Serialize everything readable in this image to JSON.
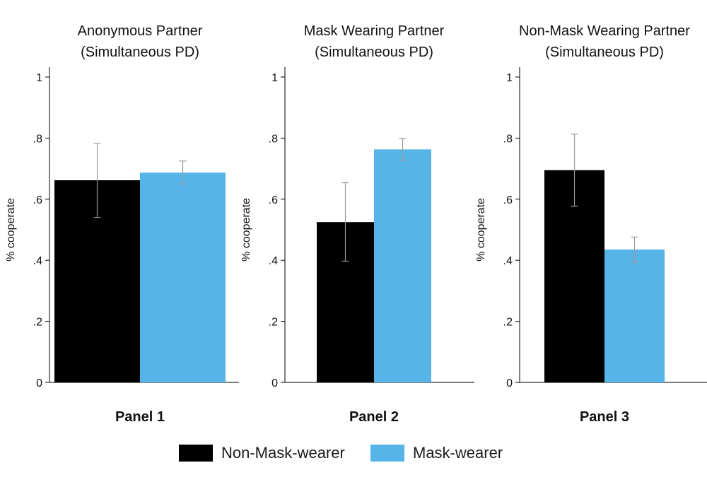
{
  "chart_data": [
    {
      "type": "bar",
      "title_line1": "Anonymous Partner",
      "title_line2": "(Simultaneous PD)",
      "panel_label": "Panel 1",
      "ylabel": "% cooperate",
      "ylim": [
        0,
        1
      ],
      "yticks": [
        0,
        0.2,
        0.4,
        0.6,
        0.8,
        1
      ],
      "ytick_labels": [
        "0",
        ".2",
        ".4",
        ".6",
        ".8",
        "1"
      ],
      "series": [
        {
          "name": "Non-Mask-wearer",
          "value": 0.662,
          "ci_low": 0.54,
          "ci_high": 0.783
        },
        {
          "name": "Mask-wearer",
          "value": 0.687,
          "ci_low": 0.65,
          "ci_high": 0.725
        }
      ]
    },
    {
      "type": "bar",
      "title_line1": "Mask Wearing Partner",
      "title_line2": "(Simultaneous PD)",
      "panel_label": "Panel 2",
      "ylabel": "% cooperate",
      "ylim": [
        0,
        1
      ],
      "yticks": [
        0,
        0.2,
        0.4,
        0.6,
        0.8,
        1
      ],
      "ytick_labels": [
        "0",
        ".2",
        ".4",
        ".6",
        ".8",
        "1"
      ],
      "series": [
        {
          "name": "Non-Mask-wearer",
          "value": 0.525,
          "ci_low": 0.397,
          "ci_high": 0.654
        },
        {
          "name": "Mask-wearer",
          "value": 0.763,
          "ci_low": 0.728,
          "ci_high": 0.799
        }
      ]
    },
    {
      "type": "bar",
      "title_line1": "Non-Mask Wearing Partner",
      "title_line2": "(Simultaneous PD)",
      "panel_label": "Panel 3",
      "ylabel": "% cooperate",
      "ylim": [
        0,
        1
      ],
      "yticks": [
        0,
        0.2,
        0.4,
        0.6,
        0.8,
        1
      ],
      "ytick_labels": [
        "0",
        ".2",
        ".4",
        ".6",
        ".8",
        "1"
      ],
      "series": [
        {
          "name": "Non-Mask-wearer",
          "value": 0.695,
          "ci_low": 0.577,
          "ci_high": 0.813
        },
        {
          "name": "Mask-wearer",
          "value": 0.435,
          "ci_low": 0.393,
          "ci_high": 0.476
        }
      ]
    }
  ],
  "legend": [
    {
      "label": "Non-Mask-wearer",
      "color": "#000000"
    },
    {
      "label": "Mask-wearer",
      "color": "#56b4e9"
    }
  ],
  "colors": {
    "non_mask": "#000000",
    "mask": "#56b4e9",
    "errorbar": "#999999",
    "axis": "#000000"
  }
}
